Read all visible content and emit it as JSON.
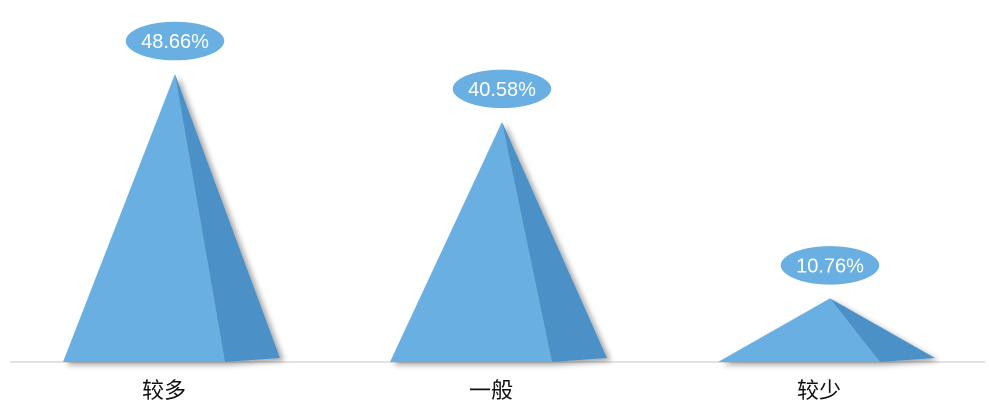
{
  "chart_data": {
    "type": "bar",
    "categories": [
      "较多",
      "一般",
      "较少"
    ],
    "values": [
      48.66,
      40.58,
      10.76
    ],
    "data_labels": [
      "48.66%",
      "40.58%",
      "10.76%"
    ],
    "bar_shape": "pyramid",
    "colors": {
      "face_front": "#6aafe2",
      "face_side": "#4c91c8",
      "label_bubble": "#6aafe2",
      "label_text": "#ffffff",
      "axis_line": "#d9d9d9"
    }
  }
}
